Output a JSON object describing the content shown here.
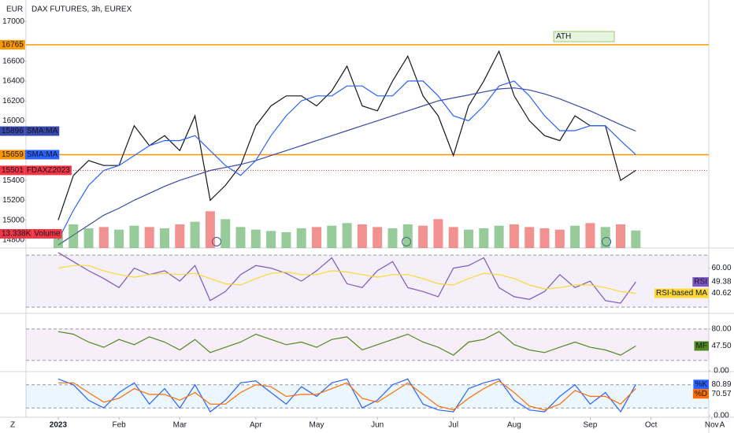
{
  "header": {
    "currency": "EUR",
    "title": "DAX FUTURES, 3h, EUREX",
    "left_button": "Z",
    "right_button": "A"
  },
  "chart_data": [
    {
      "type": "line",
      "categories": [
        null,
        "2023",
        null,
        null,
        null,
        "Feb",
        null,
        null,
        null,
        "Mar",
        null,
        null,
        null,
        null,
        "Apr",
        null,
        null,
        null,
        "May",
        null,
        null,
        null,
        "Jun",
        null,
        null,
        null,
        null,
        "Jul",
        null,
        null,
        null,
        "Aug",
        null,
        null,
        null,
        null,
        "Sep",
        null,
        null,
        null,
        "Oct",
        null,
        null,
        null,
        "Nov",
        null
      ],
      "series": [
        {
          "name": "FDAXZ2023",
          "color": "#131722",
          "label_color": "#f23645",
          "values": [
            null,
            15000,
            15450,
            15600,
            15550,
            15550,
            15950,
            15750,
            15850,
            15700,
            16050,
            15200,
            15350,
            15550,
            15950,
            16150,
            16250,
            16250,
            16150,
            16300,
            16550,
            16150,
            16100,
            16400,
            16650,
            16250,
            16050,
            15650,
            16150,
            16400,
            16700,
            16250,
            16000,
            15850,
            15800,
            16050,
            15950,
            15950,
            15400,
            15501,
            null,
            null,
            null,
            null,
            null,
            null
          ]
        },
        {
          "name": "SMA:MA",
          "color": "#3949ab",
          "label_color": "#3949ab",
          "values": [
            null,
            14750,
            14850,
            14950,
            15050,
            15120,
            15200,
            15270,
            15340,
            15400,
            15450,
            15500,
            15530,
            15560,
            15600,
            15650,
            15700,
            15750,
            15800,
            15850,
            15900,
            15950,
            16000,
            16050,
            16100,
            16150,
            16200,
            16230,
            16260,
            16290,
            16320,
            16330,
            16310,
            16270,
            16220,
            16160,
            16100,
            16030,
            15960,
            15896,
            null,
            null,
            null,
            null,
            null,
            null
          ]
        },
        {
          "name": "SMA:MA",
          "color": "#2962ff",
          "label_color": "#2962ff",
          "values": [
            null,
            14800,
            15100,
            15350,
            15500,
            15550,
            15650,
            15750,
            15800,
            15800,
            15850,
            15700,
            15550,
            15450,
            15600,
            15850,
            16050,
            16200,
            16250,
            16250,
            16350,
            16350,
            16250,
            16250,
            16400,
            16400,
            16250,
            16050,
            16000,
            16150,
            16350,
            16400,
            16250,
            16050,
            15900,
            15900,
            15950,
            15950,
            15800,
            15659,
            null,
            null,
            null,
            null,
            null,
            null
          ]
        }
      ],
      "levels": [
        {
          "value": 16765,
          "color": "#ff9800"
        },
        {
          "value": 15659,
          "color": "#ff9800"
        }
      ],
      "annotation": "ATH",
      "ylim": [
        14720,
        17215
      ],
      "yticks": [
        17000,
        16600,
        16400,
        16200,
        16000,
        15400,
        15200,
        15000,
        14800
      ]
    },
    {
      "type": "bar",
      "series": [
        {
          "name": "Volume",
          "up_color": "#43a047",
          "down_color": "#e53935",
          "label_color": "#f23645",
          "values": [
            null,
            12,
            18,
            15,
            16,
            14,
            17,
            16,
            15,
            18,
            20,
            28,
            22,
            16,
            14,
            13,
            12,
            15,
            16,
            17,
            19,
            18,
            16,
            15,
            18,
            17,
            22,
            16,
            14,
            15,
            17,
            18,
            16,
            15,
            14,
            17,
            19,
            16,
            18,
            13.338,
            null,
            null,
            null,
            null,
            null,
            null
          ],
          "value_labels": [
            null,
            null,
            null,
            null,
            null,
            null,
            null,
            null,
            null,
            null,
            null,
            null,
            null,
            null,
            null,
            null,
            null,
            null,
            null,
            null,
            null,
            null,
            null,
            null,
            null,
            null,
            null,
            null,
            null,
            null,
            null,
            null,
            null,
            null,
            null,
            null,
            null,
            null,
            null,
            "13.338K",
            null,
            null,
            null,
            null,
            null,
            null
          ]
        }
      ],
      "ylim": [
        0,
        30
      ]
    },
    {
      "type": "line",
      "series": [
        {
          "name": "RSI",
          "color": "#7e57c2",
          "values": [
            null,
            72,
            65,
            58,
            52,
            45,
            60,
            55,
            58,
            50,
            62,
            35,
            42,
            55,
            62,
            60,
            56,
            50,
            58,
            68,
            48,
            45,
            58,
            65,
            45,
            42,
            38,
            60,
            62,
            68,
            45,
            38,
            36,
            42,
            55,
            45,
            50,
            35,
            33,
            49.38,
            null,
            null,
            null,
            null,
            null,
            null
          ]
        },
        {
          "name": "RSI-based MA",
          "color": "#fdd835",
          "values": [
            null,
            60,
            62,
            62,
            58,
            55,
            53,
            55,
            56,
            55,
            56,
            52,
            48,
            47,
            52,
            56,
            57,
            55,
            55,
            58,
            57,
            55,
            53,
            55,
            55,
            52,
            48,
            47,
            52,
            56,
            55,
            52,
            47,
            44,
            45,
            47,
            47,
            45,
            42,
            40.62,
            null,
            null,
            null,
            null,
            null,
            null
          ]
        }
      ],
      "band": [
        30,
        70
      ],
      "band_color": "#7e57c2",
      "ylim": [
        25.2,
        75.5
      ],
      "yticks": [
        {
          "value": 60,
          "label": "60.00"
        }
      ]
    },
    {
      "type": "line",
      "series": [
        {
          "name": "MF",
          "color": "#4f8a1e",
          "values": [
            null,
            75,
            70,
            55,
            45,
            60,
            50,
            65,
            55,
            40,
            60,
            35,
            45,
            55,
            70,
            60,
            50,
            55,
            45,
            60,
            65,
            40,
            50,
            60,
            70,
            55,
            45,
            30,
            55,
            60,
            75,
            50,
            40,
            35,
            45,
            55,
            45,
            40,
            30,
            47.5,
            null,
            null,
            null,
            null,
            null,
            null
          ],
          "value_labels": [
            null,
            null,
            null,
            null,
            null,
            null,
            null,
            null,
            null,
            null,
            null,
            null,
            null,
            null,
            null,
            null,
            null,
            null,
            null,
            null,
            null,
            null,
            null,
            null,
            null,
            null,
            null,
            null,
            null,
            null,
            null,
            null,
            null,
            null,
            null,
            null,
            null,
            null,
            null,
            "47.50",
            null,
            null,
            null,
            null,
            null,
            null
          ]
        }
      ],
      "band": [
        20,
        80
      ],
      "band_color": "#ab47bc",
      "ylim": [
        -1.5,
        110
      ],
      "yticks": [
        {
          "value": 80,
          "label": "80.00"
        },
        {
          "value": 0,
          "label": "0.00"
        }
      ]
    },
    {
      "type": "line",
      "series": [
        {
          "name": "%K",
          "color": "#2962ff",
          "values": [
            null,
            95,
            80,
            40,
            20,
            60,
            85,
            30,
            70,
            20,
            80,
            10,
            40,
            85,
            90,
            60,
            30,
            75,
            50,
            85,
            95,
            20,
            40,
            80,
            95,
            30,
            15,
            10,
            70,
            85,
            95,
            40,
            15,
            10,
            50,
            80,
            30,
            60,
            10,
            80.89,
            null,
            null,
            null,
            null,
            null,
            null
          ]
        },
        {
          "name": "%D",
          "color": "#ff6d00",
          "values": [
            null,
            85,
            85,
            60,
            35,
            45,
            70,
            55,
            55,
            40,
            60,
            30,
            30,
            60,
            80,
            75,
            50,
            55,
            55,
            70,
            85,
            45,
            35,
            60,
            85,
            55,
            25,
            15,
            45,
            70,
            90,
            60,
            25,
            15,
            30,
            65,
            50,
            50,
            30,
            70.57,
            null,
            null,
            null,
            null,
            null,
            null
          ]
        }
      ],
      "band": [
        20,
        80
      ],
      "band_color": "#2196f3",
      "ylim": [
        -4,
        110
      ],
      "yticks": [
        {
          "value": 0,
          "label": "0.00"
        }
      ]
    }
  ]
}
